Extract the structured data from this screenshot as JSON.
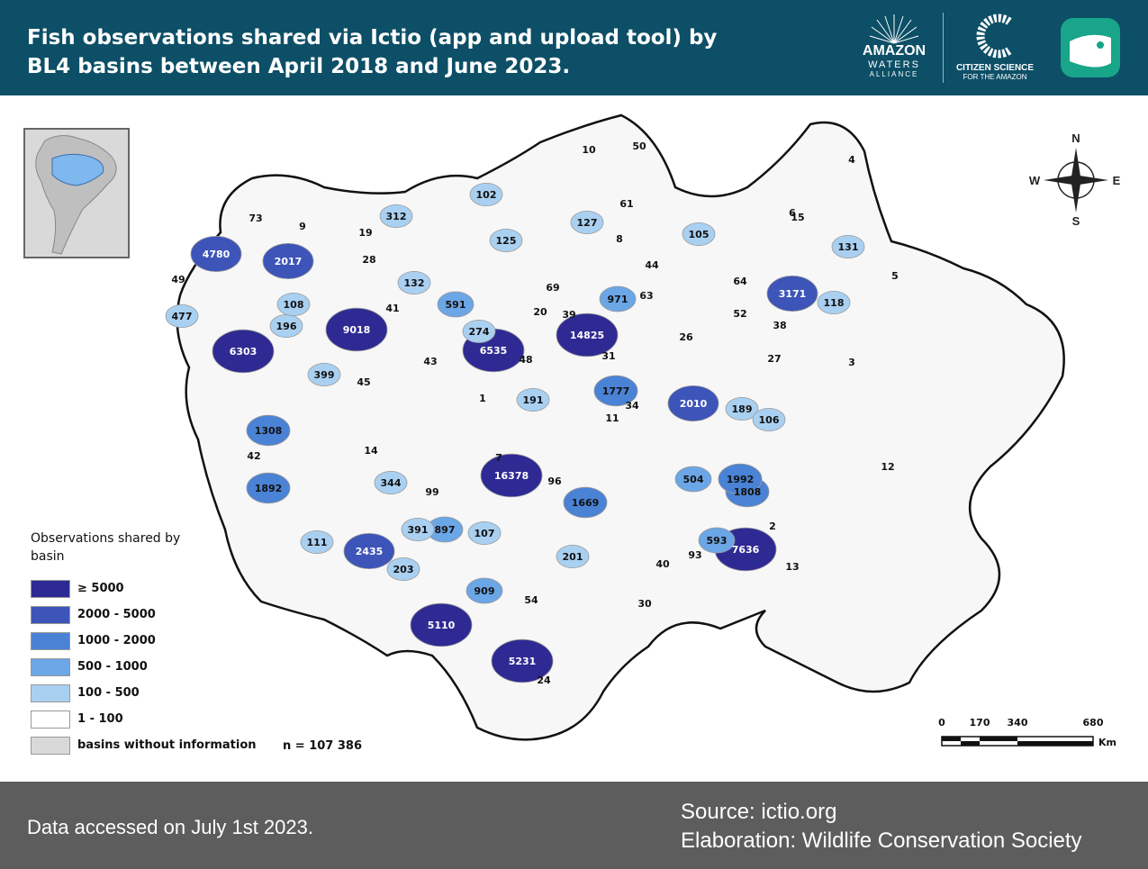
{
  "title": "Fish observations shared via Ictio (app and upload tool) by BL4 basins between April 2018 and June 2023.",
  "logos": {
    "awa_main": "AMAZON",
    "awa_sub": "WATERS",
    "awa_sub2": "ALLIANCE",
    "cs_line1": "CITIZEN SCIENCE",
    "cs_line2": "FOR THE AMAZON"
  },
  "colors": {
    "header": "#0c4f66",
    "footer": "#5d5d5d",
    "ge5000": "#2f2a93",
    "c2000_5000": "#3d55b8",
    "c1000_2000": "#4a82d6",
    "c500_1000": "#6ba6e6",
    "c100_500": "#a9d0f1",
    "c1_100": "#ffffff",
    "no_info": "#d9d9d9"
  },
  "compass": {
    "n": "N",
    "s": "S",
    "e": "E",
    "w": "W"
  },
  "legend": {
    "title": "Observations shared by basin",
    "items": [
      {
        "label": "≥ 5000",
        "color": "#2f2a93"
      },
      {
        "label": "2000 - 5000",
        "color": "#3d55b8"
      },
      {
        "label": "1000 - 2000",
        "color": "#4a82d6"
      },
      {
        "label": "500 - 1000",
        "color": "#6ba6e6"
      },
      {
        "label": "100 - 500",
        "color": "#a9d0f1"
      },
      {
        "label": "1 - 100",
        "color": "#ffffff"
      },
      {
        "label": "basins without information",
        "color": "#d9d9d9"
      }
    ],
    "total": "n = 107 386"
  },
  "scale": {
    "t0": "0",
    "t1": "170",
    "t2": "340",
    "t3": "680",
    "unit": "Km"
  },
  "basins": [
    {
      "value": "14825",
      "class": "ge5000"
    },
    {
      "value": "9018",
      "class": "ge5000"
    },
    {
      "value": "7636",
      "class": "ge5000"
    },
    {
      "value": "6535",
      "class": "ge5000"
    },
    {
      "value": "6303",
      "class": "ge5000"
    },
    {
      "value": "5231",
      "class": "ge5000"
    },
    {
      "value": "5110",
      "class": "ge5000"
    },
    {
      "value": "16378",
      "class": "ge5000"
    },
    {
      "value": "4780",
      "class": "c2000_5000"
    },
    {
      "value": "3171",
      "class": "c2000_5000"
    },
    {
      "value": "2435",
      "class": "c2000_5000"
    },
    {
      "value": "2017",
      "class": "c2000_5000"
    },
    {
      "value": "2010",
      "class": "c2000_5000"
    },
    {
      "value": "1892",
      "class": "c1000_2000"
    },
    {
      "value": "1808",
      "class": "c1000_2000"
    },
    {
      "value": "1777",
      "class": "c1000_2000"
    },
    {
      "value": "1669",
      "class": "c1000_2000"
    },
    {
      "value": "1308",
      "class": "c1000_2000"
    },
    {
      "value": "1992",
      "class": "c1000_2000"
    },
    {
      "value": "971",
      "class": "c500_1000"
    },
    {
      "value": "909",
      "class": "c500_1000"
    },
    {
      "value": "897",
      "class": "c500_1000"
    },
    {
      "value": "593",
      "class": "c500_1000"
    },
    {
      "value": "591",
      "class": "c500_1000"
    },
    {
      "value": "504",
      "class": "c500_1000"
    },
    {
      "value": "477",
      "class": "c100_500"
    },
    {
      "value": "399",
      "class": "c100_500"
    },
    {
      "value": "391",
      "class": "c100_500"
    },
    {
      "value": "344",
      "class": "c100_500"
    },
    {
      "value": "312",
      "class": "c100_500"
    },
    {
      "value": "274",
      "class": "c100_500"
    },
    {
      "value": "203",
      "class": "c100_500"
    },
    {
      "value": "201",
      "class": "c100_500"
    },
    {
      "value": "196",
      "class": "c100_500"
    },
    {
      "value": "191",
      "class": "c100_500"
    },
    {
      "value": "189",
      "class": "c100_500"
    },
    {
      "value": "132",
      "class": "c100_500"
    },
    {
      "value": "131",
      "class": "c100_500"
    },
    {
      "value": "127",
      "class": "c100_500"
    },
    {
      "value": "125",
      "class": "c100_500"
    },
    {
      "value": "118",
      "class": "c100_500"
    },
    {
      "value": "111",
      "class": "c100_500"
    },
    {
      "value": "108",
      "class": "c100_500"
    },
    {
      "value": "107",
      "class": "c100_500"
    },
    {
      "value": "106",
      "class": "c100_500"
    },
    {
      "value": "105",
      "class": "c100_500"
    },
    {
      "value": "102",
      "class": "c100_500"
    },
    {
      "value": "99",
      "class": "c1_100"
    },
    {
      "value": "96",
      "class": "c1_100"
    },
    {
      "value": "93",
      "class": "c1_100"
    },
    {
      "value": "73",
      "class": "c1_100"
    },
    {
      "value": "69",
      "class": "c1_100"
    },
    {
      "value": "64",
      "class": "c1_100"
    },
    {
      "value": "63",
      "class": "c1_100"
    },
    {
      "value": "61",
      "class": "c1_100"
    },
    {
      "value": "54",
      "class": "c1_100"
    },
    {
      "value": "52",
      "class": "c1_100"
    },
    {
      "value": "50",
      "class": "c1_100"
    },
    {
      "value": "49",
      "class": "c1_100"
    },
    {
      "value": "48",
      "class": "c1_100"
    },
    {
      "value": "45",
      "class": "c1_100"
    },
    {
      "value": "44",
      "class": "c1_100"
    },
    {
      "value": "43",
      "class": "c1_100"
    },
    {
      "value": "42",
      "class": "c1_100"
    },
    {
      "value": "41",
      "class": "c1_100"
    },
    {
      "value": "40",
      "class": "c1_100"
    },
    {
      "value": "39",
      "class": "c1_100"
    },
    {
      "value": "38",
      "class": "c1_100"
    },
    {
      "value": "34",
      "class": "c1_100"
    },
    {
      "value": "31",
      "class": "c1_100"
    },
    {
      "value": "30",
      "class": "c1_100"
    },
    {
      "value": "28",
      "class": "c1_100"
    },
    {
      "value": "27",
      "class": "c1_100"
    },
    {
      "value": "26",
      "class": "c1_100"
    },
    {
      "value": "24",
      "class": "c1_100"
    },
    {
      "value": "20",
      "class": "c1_100"
    },
    {
      "value": "19",
      "class": "c1_100"
    },
    {
      "value": "15",
      "class": "c1_100"
    },
    {
      "value": "14",
      "class": "c1_100"
    },
    {
      "value": "13",
      "class": "c1_100"
    },
    {
      "value": "12",
      "class": "c1_100"
    },
    {
      "value": "11",
      "class": "c1_100"
    },
    {
      "value": "10",
      "class": "c1_100"
    },
    {
      "value": "9",
      "class": "c1_100"
    },
    {
      "value": "8",
      "class": "c1_100"
    },
    {
      "value": "7",
      "class": "c1_100"
    },
    {
      "value": "6",
      "class": "c1_100"
    },
    {
      "value": "5",
      "class": "c1_100"
    },
    {
      "value": "4",
      "class": "c1_100"
    },
    {
      "value": "3",
      "class": "c1_100"
    },
    {
      "value": "2",
      "class": "c1_100"
    },
    {
      "value": "1",
      "class": "c1_100"
    }
  ],
  "footer": {
    "accessed": "Data accessed on July 1st 2023.",
    "source": "Source: ictio.org",
    "elaboration": "Elaboration: Wildlife Conservation Society"
  }
}
